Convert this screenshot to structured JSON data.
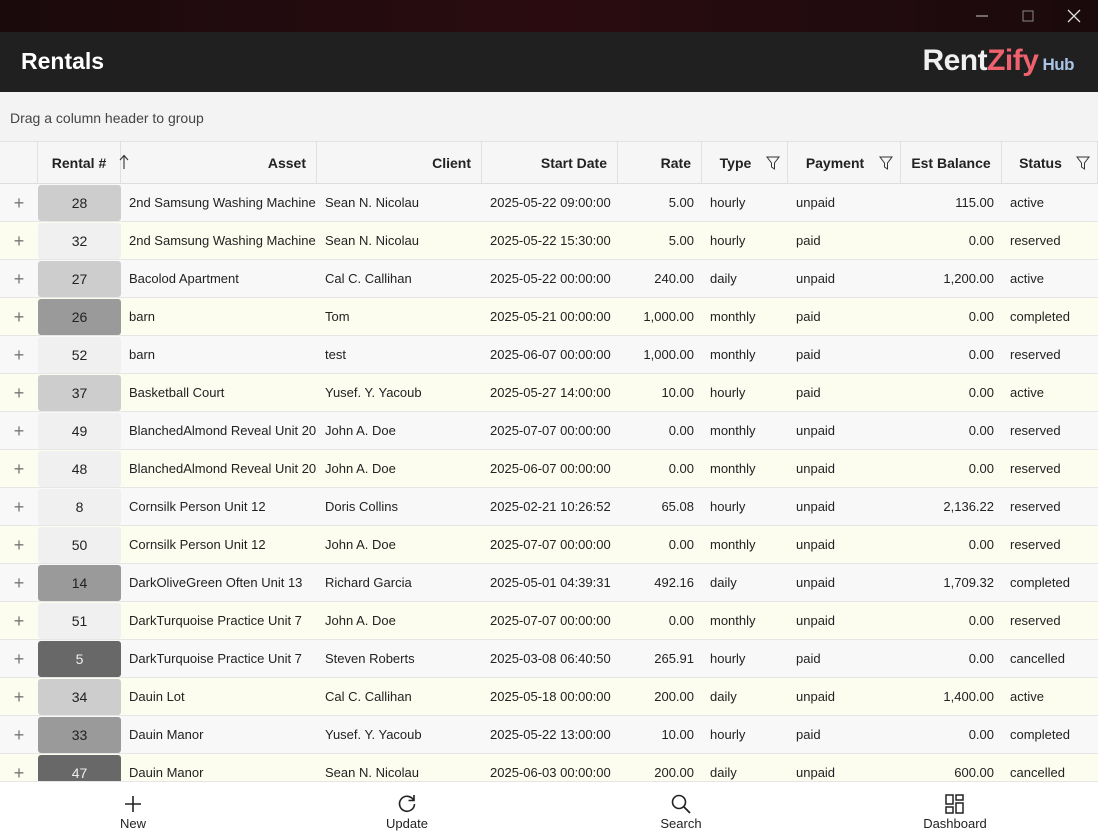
{
  "header": {
    "title": "Rentals",
    "logo": {
      "part1": "Rent",
      "part2": "Zify",
      "part3": "Hub"
    }
  },
  "group_panel": {
    "text": "Drag a column header to group"
  },
  "table": {
    "columns": [
      "Rental #",
      "Asset",
      "Client",
      "Start Date",
      "Rate",
      "Type",
      "Payment",
      "Est Balance",
      "Status"
    ],
    "rows": [
      [
        "28",
        "2nd Samsung Washing Machine",
        "Sean N. Nicolau",
        "2025-05-22 09:00:00",
        "5.00",
        "hourly",
        "unpaid",
        "115.00",
        "active"
      ],
      [
        "32",
        "2nd Samsung Washing Machine",
        "Sean N. Nicolau",
        "2025-05-22 15:30:00",
        "5.00",
        "hourly",
        "paid",
        "0.00",
        "reserved"
      ],
      [
        "27",
        "Bacolod Apartment",
        "Cal C. Callihan",
        "2025-05-22 00:00:00",
        "240.00",
        "daily",
        "unpaid",
        "1,200.00",
        "active"
      ],
      [
        "26",
        "barn",
        "Tom",
        "2025-05-21 00:00:00",
        "1,000.00",
        "monthly",
        "paid",
        "0.00",
        "completed"
      ],
      [
        "52",
        "barn",
        "test",
        "2025-06-07 00:00:00",
        "1,000.00",
        "monthly",
        "paid",
        "0.00",
        "reserved"
      ],
      [
        "37",
        "Basketball Court",
        "Yusef. Y. Yacoub",
        "2025-05-27 14:00:00",
        "10.00",
        "hourly",
        "paid",
        "0.00",
        "active"
      ],
      [
        "49",
        "BlanchedAlmond Reveal Unit 20",
        "John A. Doe",
        "2025-07-07 00:00:00",
        "0.00",
        "monthly",
        "unpaid",
        "0.00",
        "reserved"
      ],
      [
        "48",
        "BlanchedAlmond Reveal Unit 20",
        "John A. Doe",
        "2025-06-07 00:00:00",
        "0.00",
        "monthly",
        "unpaid",
        "0.00",
        "reserved"
      ],
      [
        "8",
        "Cornsilk Person Unit 12",
        "Doris Collins",
        "2025-02-21 10:26:52",
        "65.08",
        "hourly",
        "unpaid",
        "2,136.22",
        "reserved"
      ],
      [
        "50",
        "Cornsilk Person Unit 12",
        "John A. Doe",
        "2025-07-07 00:00:00",
        "0.00",
        "monthly",
        "unpaid",
        "0.00",
        "reserved"
      ],
      [
        "14",
        "DarkOliveGreen Often Unit 13",
        "Richard Garcia",
        "2025-05-01 04:39:31",
        "492.16",
        "daily",
        "unpaid",
        "1,709.32",
        "completed"
      ],
      [
        "51",
        "DarkTurquoise Practice Unit 7",
        "John A. Doe",
        "2025-07-07 00:00:00",
        "0.00",
        "monthly",
        "unpaid",
        "0.00",
        "reserved"
      ],
      [
        "5",
        "DarkTurquoise Practice Unit 7",
        "Steven Roberts",
        "2025-03-08 06:40:50",
        "265.91",
        "hourly",
        "paid",
        "0.00",
        "cancelled"
      ],
      [
        "34",
        "Dauin Lot",
        "Cal C. Callihan",
        "2025-05-18 00:00:00",
        "200.00",
        "daily",
        "unpaid",
        "1,400.00",
        "active"
      ],
      [
        "33",
        "Dauin Manor",
        "Yusef. Y. Yacoub",
        "2025-05-22 13:00:00",
        "10.00",
        "hourly",
        "paid",
        "0.00",
        "completed"
      ],
      [
        "47",
        "Dauin Manor",
        "Sean N. Nicolau",
        "2025-06-03 00:00:00",
        "200.00",
        "daily",
        "unpaid",
        "600.00",
        "cancelled"
      ]
    ]
  },
  "toolbar": {
    "buttons": [
      "New",
      "Update",
      "Search",
      "Dashboard"
    ]
  }
}
